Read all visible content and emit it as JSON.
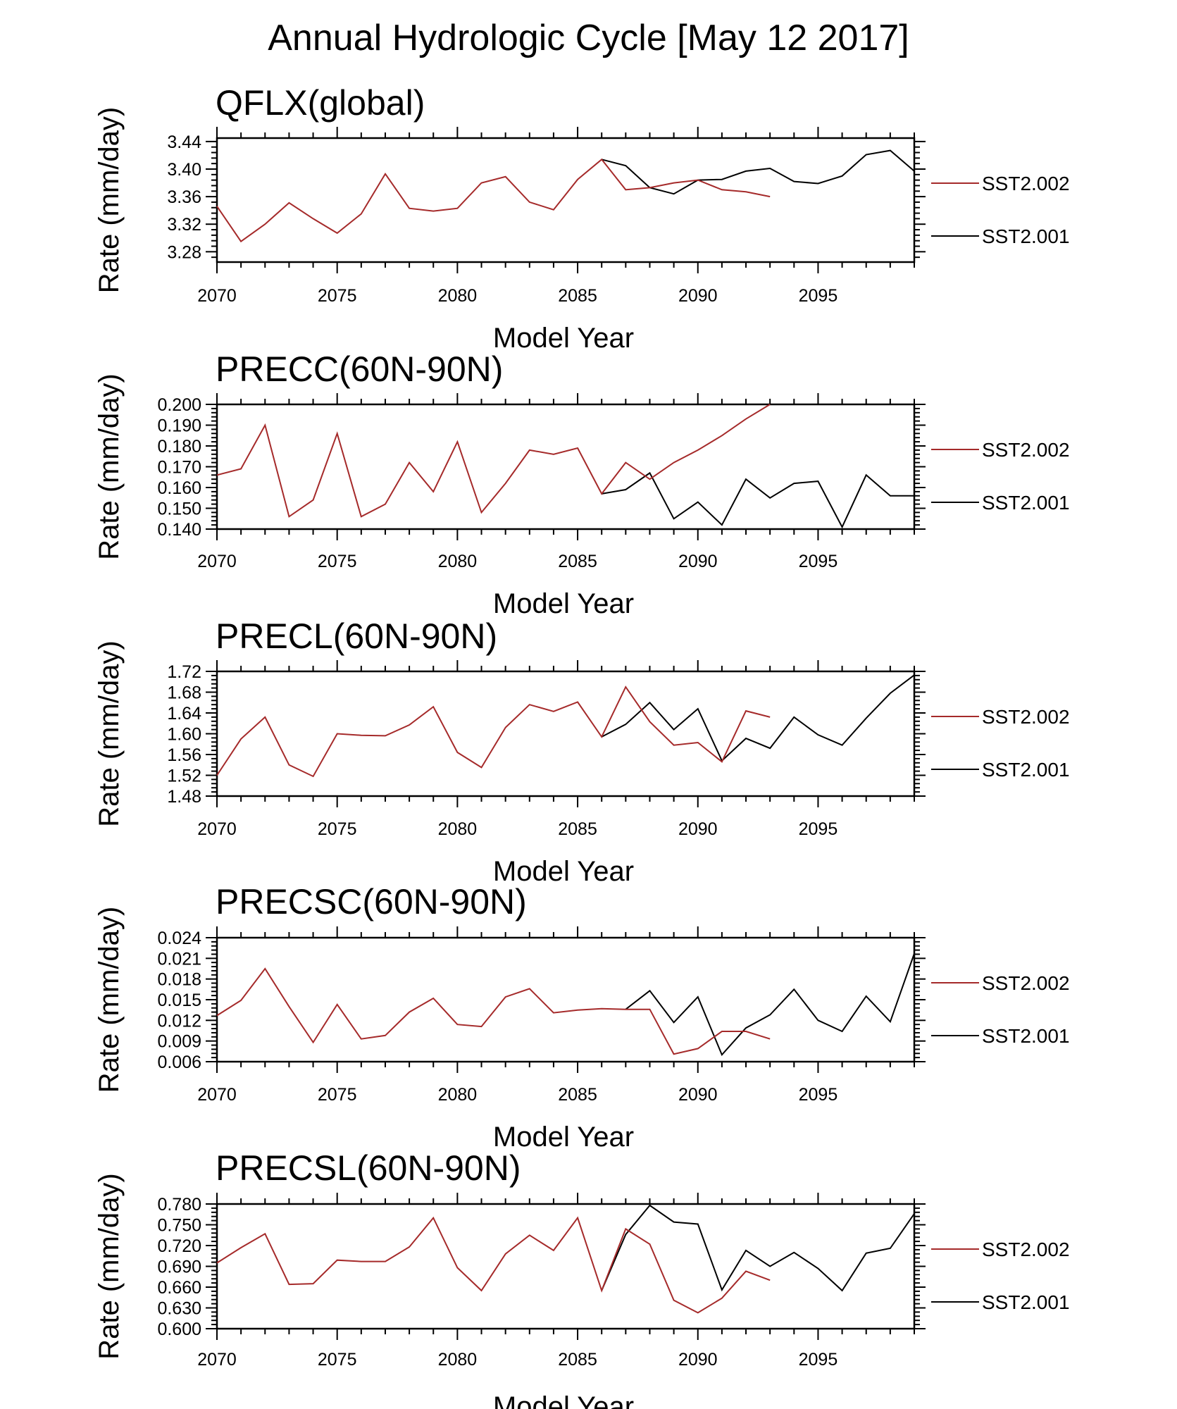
{
  "figure": {
    "title": "Annual Hydrologic Cycle [May 12 2017]"
  },
  "colors": {
    "SST2.002": "#a52a2a",
    "SST2.001": "#000000",
    "frame": "#000000"
  },
  "chart_data": [
    {
      "type": "line",
      "title": "QFLX(global)",
      "xlabel": "Model Year",
      "ylabel": "Rate (mm/day)",
      "xlim": [
        2070,
        2099
      ],
      "ylim": [
        3.265,
        3.445
      ],
      "xticks": [
        2070,
        2075,
        2080,
        2085,
        2090,
        2095
      ],
      "xtick_labels": [
        "2070",
        "2075",
        "2080",
        "2085",
        "2090",
        "2095"
      ],
      "yticks": [
        3.28,
        3.32,
        3.36,
        3.4,
        3.44
      ],
      "ytick_labels": [
        "3.28",
        "3.32",
        "3.36",
        "3.40",
        "3.44"
      ],
      "legend": {
        "position": "right",
        "entries": [
          "SST2.002",
          "SST2.001"
        ]
      },
      "series": [
        {
          "name": "SST2.002",
          "x_start": 2070,
          "values": [
            3.346,
            3.295,
            3.32,
            3.351,
            3.328,
            3.307,
            3.335,
            3.393,
            3.343,
            3.339,
            3.343,
            3.38,
            3.389,
            3.352,
            3.341,
            3.385,
            3.414,
            3.37,
            3.373,
            3.38,
            3.384,
            3.37,
            3.367,
            3.36
          ]
        },
        {
          "name": "SST2.001",
          "x_start": 2086,
          "values": [
            3.414,
            3.405,
            3.373,
            3.364,
            3.384,
            3.385,
            3.397,
            3.401,
            3.382,
            3.379,
            3.39,
            3.421,
            3.427,
            3.397
          ]
        }
      ]
    },
    {
      "type": "line",
      "title": "PRECC(60N-90N)",
      "xlabel": "Model Year",
      "ylabel": "Rate (mm/day)",
      "xlim": [
        2070,
        2099
      ],
      "ylim": [
        0.14,
        0.2
      ],
      "xticks": [
        2070,
        2075,
        2080,
        2085,
        2090,
        2095
      ],
      "xtick_labels": [
        "2070",
        "2075",
        "2080",
        "2085",
        "2090",
        "2095"
      ],
      "yticks": [
        0.14,
        0.15,
        0.16,
        0.17,
        0.18,
        0.19,
        0.2
      ],
      "ytick_labels": [
        "0.140",
        "0.150",
        "0.160",
        "0.170",
        "0.180",
        "0.190",
        "0.200"
      ],
      "legend": {
        "position": "right",
        "entries": [
          "SST2.002",
          "SST2.001"
        ]
      },
      "series": [
        {
          "name": "SST2.002",
          "x_start": 2070,
          "values": [
            0.166,
            0.169,
            0.19,
            0.146,
            0.154,
            0.186,
            0.146,
            0.152,
            0.172,
            0.158,
            0.182,
            0.148,
            0.162,
            0.178,
            0.176,
            0.179,
            0.157,
            0.172,
            0.164,
            0.172,
            0.178,
            0.185,
            0.193,
            0.2
          ]
        },
        {
          "name": "SST2.001",
          "x_start": 2086,
          "values": [
            0.157,
            0.159,
            0.167,
            0.145,
            0.153,
            0.142,
            0.164,
            0.155,
            0.162,
            0.163,
            0.141,
            0.166,
            0.156,
            0.156
          ]
        }
      ]
    },
    {
      "type": "line",
      "title": "PRECL(60N-90N)",
      "xlabel": "Model Year",
      "ylabel": "Rate (mm/day)",
      "xlim": [
        2070,
        2099
      ],
      "ylim": [
        1.48,
        1.72
      ],
      "xticks": [
        2070,
        2075,
        2080,
        2085,
        2090,
        2095
      ],
      "xtick_labels": [
        "2070",
        "2075",
        "2080",
        "2085",
        "2090",
        "2095"
      ],
      "yticks": [
        1.48,
        1.52,
        1.56,
        1.6,
        1.64,
        1.68,
        1.72
      ],
      "ytick_labels": [
        "1.48",
        "1.52",
        "1.56",
        "1.60",
        "1.64",
        "1.68",
        "1.72"
      ],
      "legend": {
        "position": "right",
        "entries": [
          "SST2.002",
          "SST2.001"
        ]
      },
      "series": [
        {
          "name": "SST2.002",
          "x_start": 2070,
          "values": [
            1.52,
            1.59,
            1.632,
            1.54,
            1.518,
            1.6,
            1.597,
            1.596,
            1.617,
            1.652,
            1.564,
            1.535,
            1.612,
            1.656,
            1.643,
            1.661,
            1.594,
            1.69,
            1.623,
            1.578,
            1.583,
            1.546,
            1.644,
            1.632
          ]
        },
        {
          "name": "SST2.001",
          "x_start": 2086,
          "values": [
            1.594,
            1.618,
            1.66,
            1.608,
            1.648,
            1.548,
            1.591,
            1.572,
            1.632,
            1.598,
            1.578,
            1.63,
            1.678,
            1.713
          ]
        }
      ]
    },
    {
      "type": "line",
      "title": "PRECSC(60N-90N)",
      "xlabel": "Model Year",
      "ylabel": "Rate (mm/day)",
      "xlim": [
        2070,
        2099
      ],
      "ylim": [
        0.006,
        0.024
      ],
      "xticks": [
        2070,
        2075,
        2080,
        2085,
        2090,
        2095
      ],
      "xtick_labels": [
        "2070",
        "2075",
        "2080",
        "2085",
        "2090",
        "2095"
      ],
      "yticks": [
        0.006,
        0.009,
        0.012,
        0.015,
        0.018,
        0.021,
        0.024
      ],
      "ytick_labels": [
        "0.006",
        "0.009",
        "0.012",
        "0.015",
        "0.018",
        "0.021",
        "0.024"
      ],
      "legend": {
        "position": "right",
        "entries": [
          "SST2.002",
          "SST2.001"
        ]
      },
      "series": [
        {
          "name": "SST2.002",
          "x_start": 2070,
          "values": [
            0.0127,
            0.0149,
            0.0195,
            0.014,
            0.0088,
            0.0143,
            0.0093,
            0.0098,
            0.0132,
            0.0152,
            0.0114,
            0.0111,
            0.0154,
            0.0166,
            0.0131,
            0.0135,
            0.0137,
            0.0136,
            0.0136,
            0.0071,
            0.0079,
            0.0104,
            0.0104,
            0.0093
          ]
        },
        {
          "name": "SST2.001",
          "x_start": 2087,
          "values": [
            0.0136,
            0.0163,
            0.0117,
            0.0154,
            0.007,
            0.0109,
            0.0128,
            0.0165,
            0.012,
            0.0104,
            0.0155,
            0.0118,
            0.0217
          ]
        }
      ]
    },
    {
      "type": "line",
      "title": "PRECSL(60N-90N)",
      "xlabel": "Model Year",
      "ylabel": "Rate (mm/day)",
      "xlim": [
        2070,
        2099
      ],
      "ylim": [
        0.6,
        0.78
      ],
      "xticks": [
        2070,
        2075,
        2080,
        2085,
        2090,
        2095
      ],
      "xtick_labels": [
        "2070",
        "2075",
        "2080",
        "2085",
        "2090",
        "2095"
      ],
      "yticks": [
        0.6,
        0.63,
        0.66,
        0.69,
        0.72,
        0.75,
        0.78
      ],
      "ytick_labels": [
        "0.600",
        "0.630",
        "0.660",
        "0.690",
        "0.720",
        "0.750",
        "0.780"
      ],
      "legend": {
        "position": "right",
        "entries": [
          "SST2.002",
          "SST2.001"
        ]
      },
      "series": [
        {
          "name": "SST2.002",
          "x_start": 2070,
          "values": [
            0.695,
            0.717,
            0.737,
            0.664,
            0.665,
            0.699,
            0.697,
            0.697,
            0.718,
            0.76,
            0.688,
            0.655,
            0.708,
            0.735,
            0.713,
            0.76,
            0.655,
            0.744,
            0.722,
            0.641,
            0.623,
            0.644,
            0.683,
            0.67
          ]
        },
        {
          "name": "SST2.001",
          "x_start": 2086,
          "values": [
            0.655,
            0.736,
            0.778,
            0.754,
            0.751,
            0.656,
            0.713,
            0.69,
            0.71,
            0.687,
            0.655,
            0.709,
            0.716,
            0.766
          ]
        }
      ]
    }
  ]
}
